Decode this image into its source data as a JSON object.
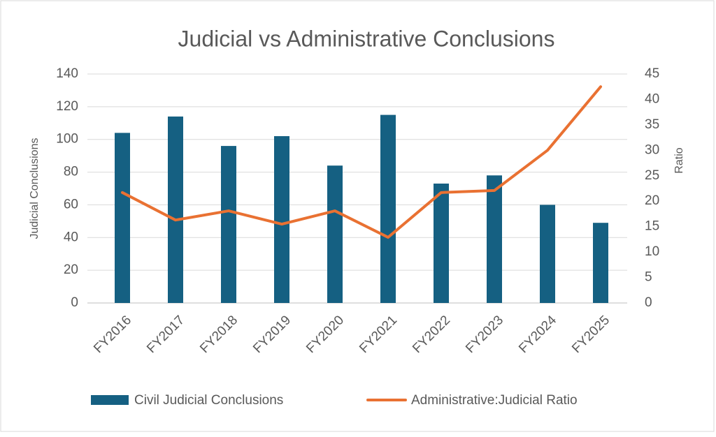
{
  "chart_data": {
    "type": "bar-line",
    "title": "Judicial vs Administrative Conclusions",
    "y_label": "Judicial Conclusions",
    "y2_label": "Ratio",
    "categories": [
      "FY2016",
      "FY2017",
      "FY2018",
      "FY2019",
      "FY2020",
      "FY2021",
      "FY2022",
      "FY2023",
      "FY2024",
      "FY2025"
    ],
    "series": [
      {
        "name": "Civil Judicial Conclusions",
        "type": "bar",
        "color": "#156082",
        "values": [
          104,
          114,
          96,
          102,
          84,
          115,
          73,
          78,
          60,
          49
        ]
      },
      {
        "name": "Administrative:Judicial Ratio",
        "type": "line",
        "axis": "y2",
        "color": "#e97132",
        "values": [
          21.7,
          16.3,
          18.1,
          15.5,
          18.1,
          12.9,
          21.7,
          22.1,
          30.0,
          42.5
        ]
      }
    ],
    "ylim": [
      0,
      140
    ],
    "yticks": [
      0,
      20,
      40,
      60,
      80,
      100,
      120,
      140
    ],
    "y2lim": [
      0,
      45
    ],
    "y2ticks": [
      0,
      5,
      10,
      15,
      20,
      25,
      30,
      35,
      40,
      45
    ],
    "grid": true,
    "legend": "bottom"
  }
}
